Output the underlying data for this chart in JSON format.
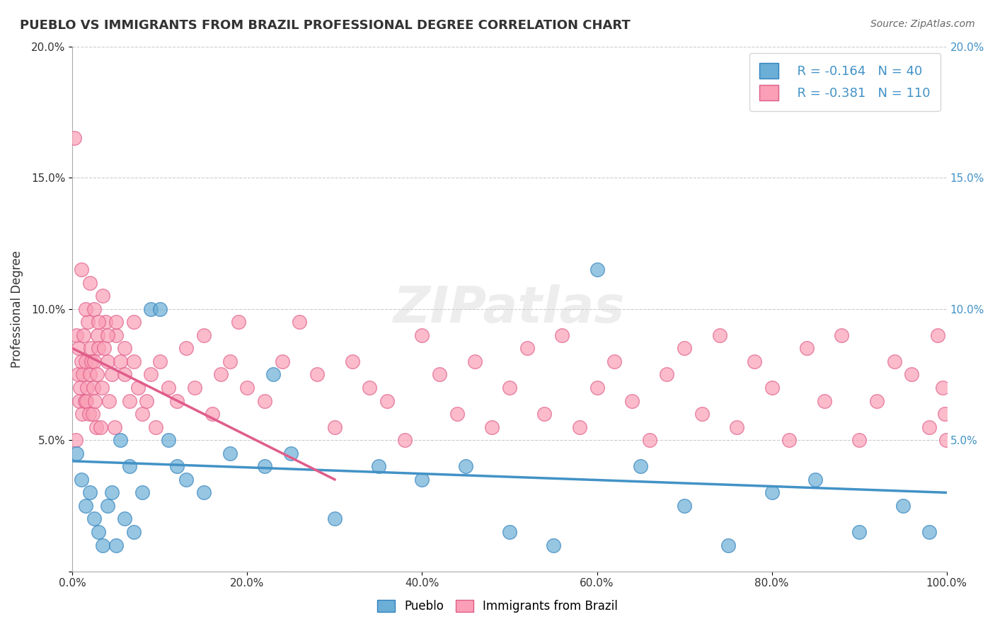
{
  "title": "PUEBLO VS IMMIGRANTS FROM BRAZIL PROFESSIONAL DEGREE CORRELATION CHART",
  "source": "Source: ZipAtlas.com",
  "xlabel": "",
  "ylabel": "Professional Degree",
  "xlim": [
    0,
    100
  ],
  "ylim": [
    0,
    20
  ],
  "xticks": [
    0,
    20,
    40,
    60,
    80,
    100
  ],
  "yticks": [
    0,
    5,
    10,
    15,
    20
  ],
  "xtick_labels": [
    "0.0%",
    "20.0%",
    "40.0%",
    "60.0%",
    "80.0%",
    "100.0%"
  ],
  "ytick_labels": [
    "",
    "5.0%",
    "10.0%",
    "15.0%",
    "20.0%"
  ],
  "pueblo_color": "#6baed6",
  "brazil_color": "#fa9fb5",
  "pueblo_edge": "#3182bd",
  "brazil_edge": "#e05c8a",
  "trendline_pueblo": "#4292c6",
  "trendline_brazil": "#e05c8a",
  "legend_R_pueblo": "R = -0.164",
  "legend_N_pueblo": "N = 40",
  "legend_R_brazil": "R = -0.381",
  "legend_N_brazil": "N = 110",
  "watermark": "ZIPatlas",
  "pueblo_scatter_x": [
    0.5,
    1.0,
    1.5,
    2.0,
    2.5,
    3.0,
    3.5,
    4.0,
    4.5,
    5.0,
    5.5,
    6.0,
    6.5,
    7.0,
    8.0,
    9.0,
    10.0,
    11.0,
    12.0,
    13.0,
    15.0,
    18.0,
    22.0,
    23.0,
    25.0,
    30.0,
    35.0,
    40.0,
    45.0,
    50.0,
    55.0,
    60.0,
    65.0,
    70.0,
    75.0,
    80.0,
    85.0,
    90.0,
    95.0,
    98.0
  ],
  "pueblo_scatter_y": [
    4.5,
    3.5,
    2.5,
    3.0,
    2.0,
    1.5,
    1.0,
    2.5,
    3.0,
    1.0,
    5.0,
    2.0,
    4.0,
    1.5,
    3.0,
    10.0,
    10.0,
    5.0,
    4.0,
    3.5,
    3.0,
    4.5,
    4.0,
    7.5,
    4.5,
    2.0,
    4.0,
    3.5,
    4.0,
    1.5,
    1.0,
    11.5,
    4.0,
    2.5,
    1.0,
    3.0,
    3.5,
    1.5,
    2.5,
    1.5
  ],
  "brazil_scatter_x": [
    0.2,
    0.4,
    0.5,
    0.6,
    0.7,
    0.8,
    0.9,
    1.0,
    1.1,
    1.2,
    1.3,
    1.4,
    1.5,
    1.6,
    1.7,
    1.8,
    1.9,
    2.0,
    2.1,
    2.2,
    2.3,
    2.4,
    2.5,
    2.6,
    2.7,
    2.8,
    2.9,
    3.0,
    3.2,
    3.4,
    3.6,
    3.8,
    4.0,
    4.2,
    4.5,
    4.8,
    5.0,
    5.5,
    6.0,
    6.5,
    7.0,
    7.5,
    8.0,
    8.5,
    9.0,
    9.5,
    10.0,
    11.0,
    12.0,
    13.0,
    14.0,
    15.0,
    16.0,
    17.0,
    18.0,
    19.0,
    20.0,
    22.0,
    24.0,
    26.0,
    28.0,
    30.0,
    32.0,
    34.0,
    36.0,
    38.0,
    40.0,
    42.0,
    44.0,
    46.0,
    48.0,
    50.0,
    52.0,
    54.0,
    56.0,
    58.0,
    60.0,
    62.0,
    64.0,
    66.0,
    68.0,
    70.0,
    72.0,
    74.0,
    76.0,
    78.0,
    80.0,
    82.0,
    84.0,
    86.0,
    88.0,
    90.0,
    92.0,
    94.0,
    96.0,
    98.0,
    99.0,
    99.5,
    99.8,
    99.9,
    1.0,
    1.5,
    2.0,
    2.5,
    3.0,
    3.5,
    4.0,
    5.0,
    6.0,
    7.0
  ],
  "brazil_scatter_y": [
    16.5,
    5.0,
    9.0,
    7.5,
    8.5,
    6.5,
    7.0,
    8.0,
    6.0,
    7.5,
    9.0,
    6.5,
    8.0,
    6.5,
    7.0,
    9.5,
    6.0,
    7.5,
    8.5,
    8.0,
    6.0,
    7.0,
    8.0,
    6.5,
    5.5,
    7.5,
    9.0,
    8.5,
    5.5,
    7.0,
    8.5,
    9.5,
    8.0,
    6.5,
    7.5,
    5.5,
    9.0,
    8.0,
    7.5,
    6.5,
    8.0,
    7.0,
    6.0,
    6.5,
    7.5,
    5.5,
    8.0,
    7.0,
    6.5,
    8.5,
    7.0,
    9.0,
    6.0,
    7.5,
    8.0,
    9.5,
    7.0,
    6.5,
    8.0,
    9.5,
    7.5,
    5.5,
    8.0,
    7.0,
    6.5,
    5.0,
    9.0,
    7.5,
    6.0,
    8.0,
    5.5,
    7.0,
    8.5,
    6.0,
    9.0,
    5.5,
    7.0,
    8.0,
    6.5,
    5.0,
    7.5,
    8.5,
    6.0,
    9.0,
    5.5,
    8.0,
    7.0,
    5.0,
    8.5,
    6.5,
    9.0,
    5.0,
    6.5,
    8.0,
    7.5,
    5.5,
    9.0,
    7.0,
    6.0,
    5.0,
    11.5,
    10.0,
    11.0,
    10.0,
    9.5,
    10.5,
    9.0,
    9.5,
    8.5,
    9.5
  ],
  "pueblo_trend_x": [
    0,
    100
  ],
  "pueblo_trend_y": [
    4.2,
    3.0
  ],
  "brazil_trend_x": [
    0,
    30
  ],
  "brazil_trend_y": [
    8.5,
    3.5
  ],
  "background_color": "#ffffff",
  "grid_color": "#cccccc",
  "right_axis_color": "#4292c6"
}
